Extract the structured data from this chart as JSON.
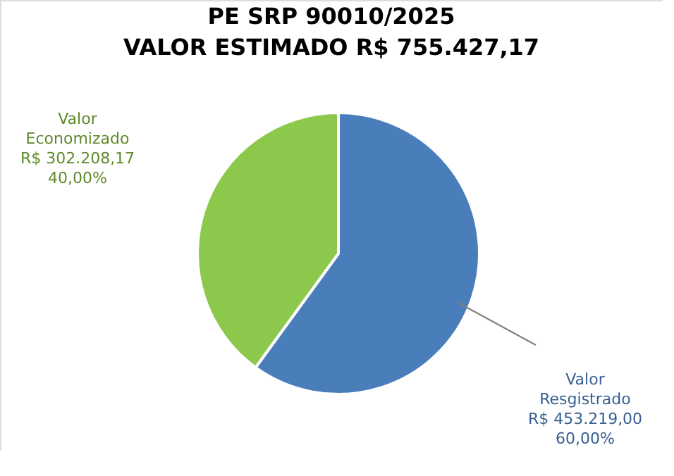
{
  "chart_data": {
    "type": "pie",
    "title": "PE  SRP 90010/2025\nVALOR ESTIMADO R$ 755.427,17",
    "categories": [
      "Valor\nResgistrado",
      "Valor\nEconomizado"
    ],
    "values": [
      453219.0,
      302208.17
    ],
    "colors": [
      "#4a7ebb",
      "#8cc84b"
    ],
    "value_labels": [
      "R$ 453.219,00\n60,00%",
      "R$ 302.208,17\n40,00%"
    ]
  }
}
